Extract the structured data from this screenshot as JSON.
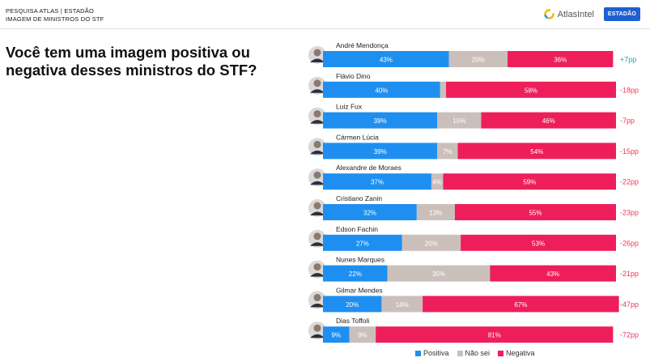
{
  "header": {
    "line1": "PESQUISA ATLAS | ESTADÃO",
    "line2": "IMAGEM DE MINISTROS DO STF",
    "atlas_logo": "AtlasIntel",
    "estadao_logo": "ESTADÃO"
  },
  "colors": {
    "positive": "#1e8ff0",
    "unknown": "#cbbfbc",
    "negative": "#ee1e5a",
    "net_positive": "#1aa89a",
    "net_negative": "#e83a5e"
  },
  "chart_data": {
    "type": "bar",
    "stacked": true,
    "orientation": "horizontal",
    "title": "Você tem uma imagem positiva ou negativa desses ministros do STF?",
    "categories": [
      "André Mendonça",
      "Flávio Dino",
      "Luiz Fux",
      "Cármen Lúcia",
      "Alexandre de Moraes",
      "Cristiano Zanin",
      "Edson Fachin",
      "Nunes Marques",
      "Gilmar Mendes",
      "Dias Toffoli"
    ],
    "series": [
      {
        "name": "Positiva",
        "values": [
          43,
          40,
          39,
          39,
          37,
          32,
          27,
          22,
          20,
          9
        ]
      },
      {
        "name": "Não sei",
        "values": [
          20,
          2,
          15,
          7,
          4,
          13,
          20,
          35,
          14,
          9
        ]
      },
      {
        "name": "Negativa",
        "values": [
          36,
          58,
          46,
          54,
          59,
          55,
          53,
          43,
          67,
          81
        ]
      }
    ],
    "labels": {
      "Positiva": [
        "43%",
        "40%",
        "39%",
        "39%",
        "37%",
        "32%",
        "27%",
        "22%",
        "20%",
        "9%"
      ],
      "Não sei": [
        "20%",
        "",
        "15%",
        "7%",
        "4%",
        "13%",
        "20%",
        "35%",
        "14%",
        "9%"
      ],
      "Negativa": [
        "36%",
        "58%",
        "46%",
        "54%",
        "59%",
        "55%",
        "53%",
        "43%",
        "67%",
        "81%"
      ]
    },
    "net": [
      "+7pp",
      "-18pp",
      "-7pp",
      "-15pp",
      "-22pp",
      "-23pp",
      "-26pp",
      "-21pp",
      "-47pp",
      "-72pp"
    ],
    "legend": [
      "Positiva",
      "Não sei",
      "Negativa"
    ],
    "xlim": [
      0,
      100
    ]
  }
}
